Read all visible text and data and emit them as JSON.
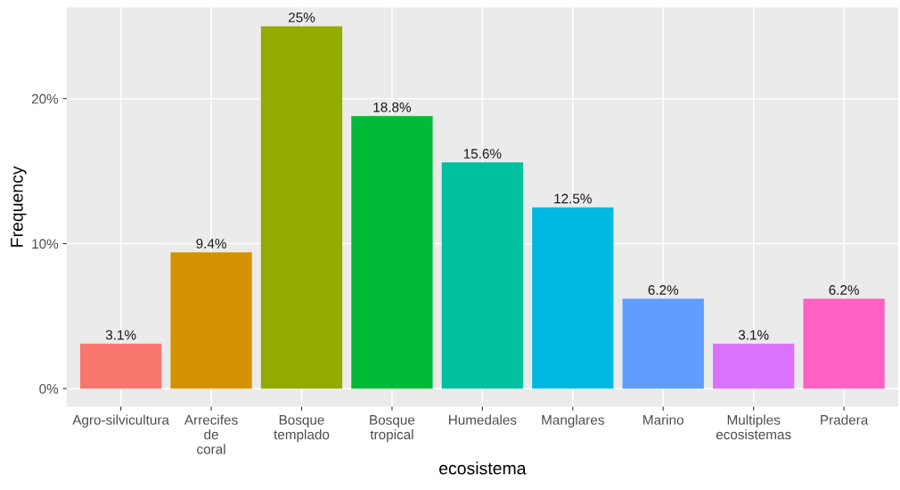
{
  "chart_data": {
    "type": "bar",
    "xlabel": "ecosistema",
    "ylabel": "Frequency",
    "categories": [
      "Agro-silvicultura",
      "Arrecifes\nde\ncoral",
      "Bosque\ntemplado",
      "Bosque\ntropical",
      "Humedales",
      "Manglares",
      "Marino",
      "Multiples\necosistemas",
      "Pradera"
    ],
    "values": [
      3.1,
      9.4,
      25,
      18.8,
      15.6,
      12.5,
      6.2,
      3.1,
      6.2
    ],
    "value_labels": [
      "3.1%",
      "9.4%",
      "25%",
      "18.8%",
      "15.6%",
      "12.5%",
      "6.2%",
      "3.1%",
      "6.2%"
    ],
    "colors": [
      "#f8766d",
      "#d39200",
      "#93aa00",
      "#00ba38",
      "#00c19f",
      "#00b9e3",
      "#619cff",
      "#db72fb",
      "#ff61c3"
    ],
    "ylim": [
      -1.25,
      26.3
    ],
    "yticks": [
      {
        "value": 0,
        "label": "0%"
      },
      {
        "value": 10,
        "label": "10%"
      },
      {
        "value": 20,
        "label": "20%"
      }
    ],
    "grid": true
  }
}
